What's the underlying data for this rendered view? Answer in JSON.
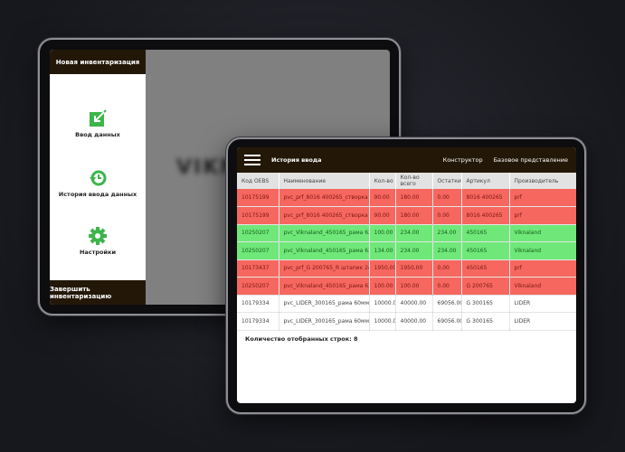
{
  "tablet1": {
    "header": "Новая инвентаризация",
    "menu": [
      {
        "label": "Ввод данных",
        "icon": "edit-arrow-icon"
      },
      {
        "label": "История ввода данных",
        "icon": "history-icon"
      },
      {
        "label": "Настройки",
        "icon": "gear-icon"
      }
    ],
    "footer": "Завершить инвентаризацию",
    "background_text": "VIKNA",
    "accent": "#3cb54a"
  },
  "tablet2": {
    "title": "История ввода",
    "nav": [
      "Конструктор",
      "Базовое представление"
    ],
    "columns": [
      "Код OEBS",
      "Наименование",
      "Кол-во",
      "Кол-во всего",
      "Остатки",
      "Артикул",
      "Производитель"
    ],
    "rows": [
      {
        "status": "red",
        "cells": [
          "10175199",
          "pvc_prf_8016 400265_створка 79 мм",
          "90.00",
          "180.00",
          "0.00",
          "8016 400265",
          "prf"
        ]
      },
      {
        "status": "red",
        "cells": [
          "10175199",
          "pvc_prf_8016 400265_створка 79 мм",
          "90.00",
          "180.00",
          "0.00",
          "8016 400265",
          "prf"
        ]
      },
      {
        "status": "green",
        "cells": [
          "10250207",
          "pvc_Viknaland_450165_рама 63мм",
          "100.00",
          "234.00",
          "234.00",
          "450165",
          "Viknaland"
        ]
      },
      {
        "status": "green",
        "cells": [
          "10250207",
          "pvc_Viknaland_450165_рама 63мм",
          "134.00",
          "234.00",
          "234.00",
          "450165",
          "Viknaland"
        ]
      },
      {
        "status": "red",
        "cells": [
          "10173437",
          "pvc_prf_G 200765_R штапик 24 мм ...",
          "1950,00",
          "1950,00",
          "0,00",
          "450165",
          "prf"
        ]
      },
      {
        "status": "red",
        "cells": [
          "10250207",
          "pvc_Viknaland_450165_рама 63мм",
          "100.00",
          "100.00",
          "0.00",
          "G 200765",
          "Viknaland"
        ]
      },
      {
        "status": "white",
        "cells": [
          "10179334",
          "pvc_LIDER_300165_рама 60мм",
          "10000.00",
          "40000.00",
          "69056.00",
          "G 300165",
          "LIDER"
        ]
      },
      {
        "status": "white",
        "cells": [
          "10179334",
          "pvc_LIDER_300165_рама 60мм",
          "10000.00",
          "40000.00",
          "69056.00",
          "G 300165",
          "LIDER"
        ]
      }
    ],
    "count_label": "Количество отобранных строк: 8",
    "colors": {
      "red": "#f6675f",
      "green": "#6fe879",
      "header": "#231808"
    }
  }
}
